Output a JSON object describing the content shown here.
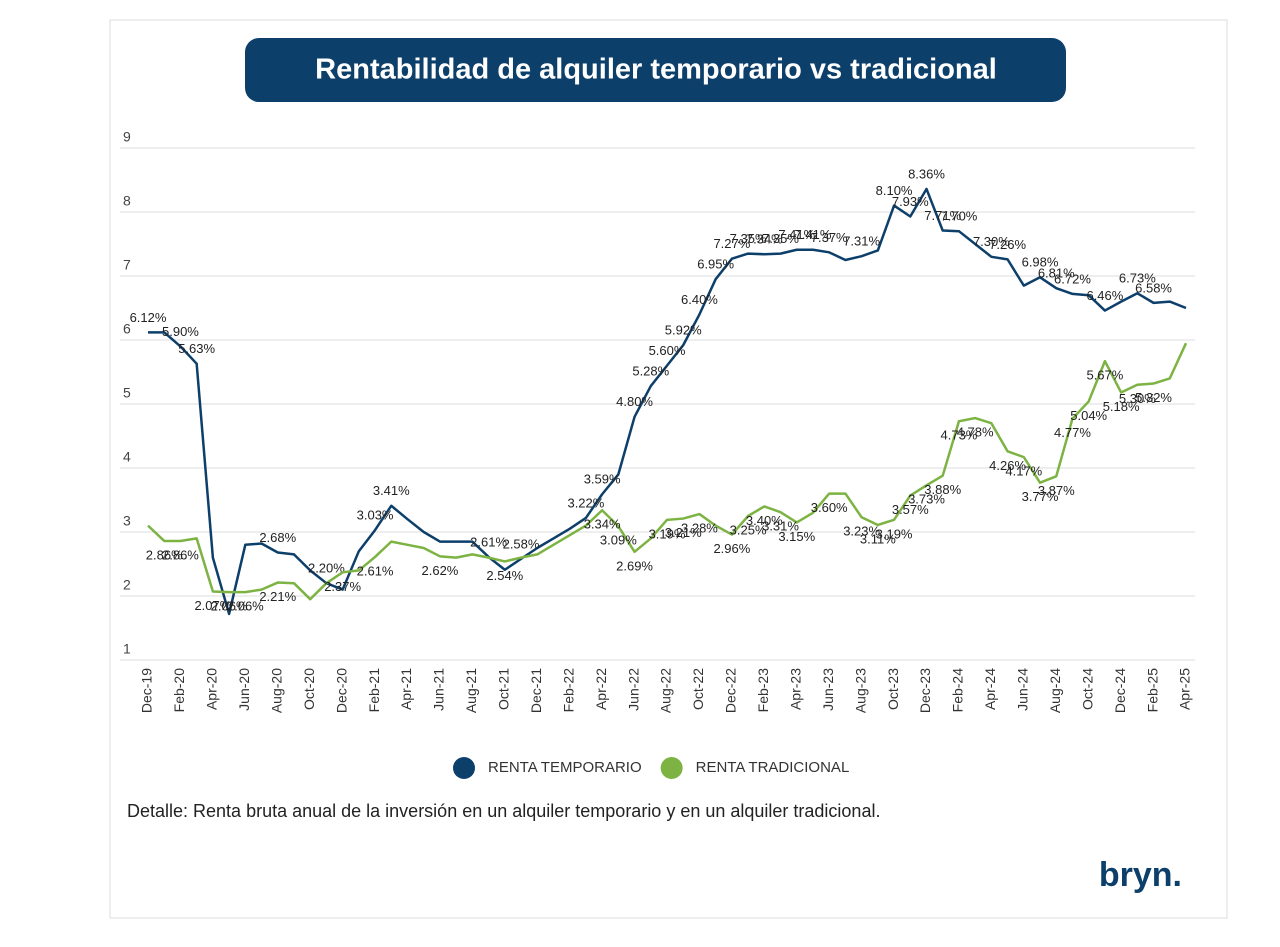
{
  "chart_data": {
    "type": "line",
    "title": "Rentabilidad de alquiler temporario vs tradicional",
    "note": "Detalle: Renta bruta anual de la inversión en un alquiler temporario y en un alquiler tradicional.",
    "brand": "bryn.",
    "categories": [
      "Dec-19",
      null,
      "Feb-20",
      null,
      "Apr-20",
      null,
      "Jun-20",
      null,
      "Aug-20",
      null,
      "Oct-20",
      null,
      "Dec-20",
      null,
      "Feb-21",
      null,
      "Apr-21",
      null,
      "Jun-21",
      null,
      "Aug-21",
      null,
      "Oct-21",
      null,
      "Dec-21",
      null,
      "Feb-22",
      null,
      "Apr-22",
      null,
      "Jun-22",
      null,
      "Aug-22",
      null,
      "Oct-22",
      null,
      "Dec-22",
      null,
      "Feb-23",
      null,
      "Apr-23",
      null,
      "Jun-23",
      null,
      "Aug-23",
      null,
      "Oct-23",
      null,
      "Dec-23",
      null,
      "Feb-24",
      null,
      "Apr-24",
      null,
      "Jun-24",
      null,
      "Aug-24",
      null,
      "Oct-24",
      null,
      "Dec-24",
      null,
      "Feb-25",
      null,
      "Apr-25"
    ],
    "series": [
      {
        "name": "RENTA TEMPORARIO",
        "color": "#0d3f6b",
        "values": [
          6.12,
          6.12,
          5.9,
          5.63,
          2.6,
          1.72,
          2.8,
          2.82,
          2.68,
          2.65,
          2.4,
          2.2,
          2.1,
          2.7,
          3.03,
          3.41,
          3.2,
          3.0,
          2.85,
          2.85,
          2.85,
          2.61,
          2.41,
          2.58,
          2.75,
          2.9,
          3.05,
          3.22,
          3.59,
          3.9,
          4.8,
          5.28,
          5.6,
          5.92,
          6.4,
          6.95,
          7.27,
          7.35,
          7.34,
          7.35,
          7.41,
          7.41,
          7.37,
          7.25,
          7.31,
          7.4,
          8.1,
          7.93,
          8.36,
          7.71,
          7.7,
          7.5,
          7.3,
          7.26,
          6.85,
          6.98,
          6.81,
          6.72,
          6.7,
          6.46,
          6.6,
          6.73,
          6.58,
          6.6,
          6.5
        ],
        "value_labels": [
          "6.12%",
          null,
          "5.90%",
          "5.63%",
          null,
          null,
          null,
          null,
          "2.68%",
          null,
          null,
          "2.20%",
          null,
          null,
          "3.03%",
          "3.41%",
          null,
          null,
          null,
          null,
          null,
          "2.61%",
          null,
          "2.58%",
          null,
          null,
          null,
          "3.22%",
          "3.59%",
          null,
          "4.80%",
          "5.28%",
          "5.60%",
          "5.92%",
          "6.40%",
          "6.95%",
          "7.27%",
          "7.35%",
          "7.34%",
          "7.35%",
          "7.41%",
          "7.41%",
          "7.37%",
          null,
          "7.31%",
          null,
          "8.10%",
          "7.93%",
          "8.36%",
          "7.71%",
          "7.70%",
          null,
          "7.30%",
          "7.26%",
          null,
          "6.98%",
          "6.81%",
          "6.72%",
          null,
          "6.46%",
          null,
          "6.73%",
          "6.58%",
          null,
          null
        ]
      },
      {
        "name": "RENTA TRADICIONAL",
        "color": "#7cb342",
        "values": [
          3.1,
          2.86,
          2.86,
          2.9,
          2.07,
          2.06,
          2.06,
          2.1,
          2.21,
          2.2,
          1.95,
          2.2,
          2.37,
          2.4,
          2.61,
          2.85,
          2.8,
          2.75,
          2.62,
          2.6,
          2.65,
          2.6,
          2.54,
          2.6,
          2.65,
          2.8,
          2.95,
          3.1,
          3.34,
          3.09,
          2.69,
          2.9,
          3.19,
          3.21,
          3.28,
          3.1,
          2.96,
          3.25,
          3.4,
          3.31,
          3.15,
          3.3,
          3.6,
          3.6,
          3.23,
          3.11,
          3.19,
          3.57,
          3.73,
          3.88,
          4.73,
          4.78,
          4.7,
          4.26,
          4.17,
          3.77,
          3.87,
          4.77,
          5.04,
          5.67,
          5.18,
          5.3,
          5.32,
          5.4,
          5.95
        ],
        "value_labels": [
          null,
          "2.86%",
          "2.86%",
          null,
          "2.07%",
          "2.06%",
          "2.06%",
          null,
          "2.21%",
          null,
          null,
          null,
          "2.37%",
          null,
          "2.61%",
          null,
          null,
          null,
          "2.62%",
          null,
          null,
          null,
          "2.54%",
          null,
          null,
          null,
          null,
          null,
          "3.34%",
          "3.09%",
          "2.69%",
          null,
          "3.19%",
          "3.21%",
          "3.28%",
          null,
          "2.96%",
          "3.25%",
          "3.40%",
          "3.31%",
          "3.15%",
          null,
          "3.60%",
          null,
          "3.23%",
          "3.11%",
          "3.19%",
          "3.57%",
          "3.73%",
          "3.88%",
          "4.73%",
          "4.78%",
          null,
          "4.26%",
          "4.17%",
          "3.77%",
          "3.87%",
          "4.77%",
          "5.04%",
          "5.67%",
          "5.18%",
          "5.30%",
          "5.32%",
          null,
          null
        ]
      }
    ],
    "ylim": [
      1,
      9
    ],
    "yticks": [
      1,
      2,
      3,
      4,
      5,
      6,
      7,
      8,
      9
    ],
    "grid": true,
    "legend": "bottom"
  }
}
